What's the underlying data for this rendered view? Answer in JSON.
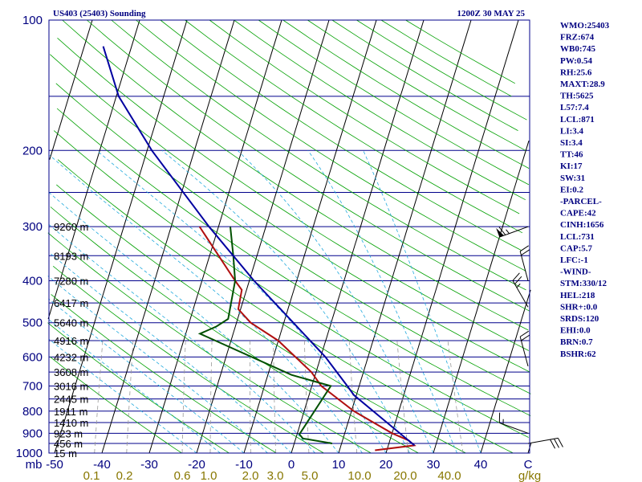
{
  "header": {
    "left_title": "US403 (25403) Sounding",
    "right_title": "1200Z 30 MAY 25"
  },
  "indices": [
    "WMO:25403",
    "FRZ:674",
    "WB0:745",
    "PW:0.54",
    "RH:25.6",
    "MAXT:28.9",
    "TH:5625",
    "L57:7.4",
    "LCL:871",
    "LI:3.4",
    "SI:3.4",
    "TT:46",
    "KI:17",
    "SW:31",
    "EI:0.2",
    "-PARCEL-",
    "CAPE:42",
    "CINH:1656",
    "LCL:731",
    "CAP:5.7",
    "LFC:-1",
    "-WIND-",
    "STM:330/12",
    "HEL:218",
    "SHR+:0.0",
    "SRDS:120",
    "EHI:0.0",
    "BRN:0.7",
    "BSHR:62"
  ],
  "colors": {
    "isobar": "#00008b",
    "isotherm": "#000000",
    "dry_adiabat": "#00a000",
    "moist_adiabat": "#22aadd",
    "mixing_ratio": "#999999",
    "temperature": "#b01010",
    "dewpoint": "#005000",
    "parcel": "#0000a0",
    "wind_barb": "#000000",
    "mixing_label": "#887700"
  },
  "chart_data": {
    "type": "skew-t log-p",
    "pressure_axis": {
      "unit": "mb",
      "range": [
        1000,
        100
      ],
      "scale": "log",
      "labels": [
        "100",
        "200",
        "300",
        "400",
        "500",
        "600",
        "700",
        "800",
        "900",
        "1000"
      ],
      "gridlines_hPa": [
        100,
        150,
        200,
        250,
        300,
        350,
        400,
        450,
        500,
        550,
        600,
        650,
        700,
        750,
        800,
        850,
        900,
        950,
        1000
      ]
    },
    "temperature_axis": {
      "unit": "C",
      "range": [
        -50,
        50
      ],
      "labels": [
        "mb",
        "-50",
        "-40",
        "-30",
        "-20",
        "-10",
        "0",
        "10",
        "20",
        "30",
        "40",
        "C"
      ]
    },
    "mixing_ratio_labels": [
      "0.1",
      "0.2",
      "0.6",
      "1.0",
      "2.0",
      "3.0",
      "5.0",
      "10.0",
      "20.0",
      "40.0",
      "g/kg"
    ],
    "height_labels": [
      {
        "p": 300,
        "label": "9260 m"
      },
      {
        "p": 350,
        "label": "8193 m"
      },
      {
        "p": 400,
        "label": "7280 m"
      },
      {
        "p": 450,
        "label": "6417 m"
      },
      {
        "p": 500,
        "label": "5640 m"
      },
      {
        "p": 550,
        "label": "4916 m"
      },
      {
        "p": 600,
        "label": "4232 m"
      },
      {
        "p": 650,
        "label": "3608 m"
      },
      {
        "p": 700,
        "label": "3016 m"
      },
      {
        "p": 750,
        "label": "2445 m"
      },
      {
        "p": 800,
        "label": "1911 m"
      },
      {
        "p": 850,
        "label": "1410 m"
      },
      {
        "p": 900,
        "label": "923 m"
      },
      {
        "p": 950,
        "label": "456 m"
      },
      {
        "p": 1000,
        "label": "15 m"
      }
    ],
    "temperature": [
      {
        "p": 985,
        "t": 17.5
      },
      {
        "p": 960,
        "t": 25.5
      },
      {
        "p": 935,
        "t": 24.0
      },
      {
        "p": 900,
        "t": 20.0
      },
      {
        "p": 800,
        "t": 10.5
      },
      {
        "p": 700,
        "t": 2.0
      },
      {
        "p": 650,
        "t": -1.0
      },
      {
        "p": 550,
        "t": -10.0
      },
      {
        "p": 500,
        "t": -17.0
      },
      {
        "p": 465,
        "t": -20.5
      },
      {
        "p": 420,
        "t": -21.0
      },
      {
        "p": 400,
        "t": -23.0
      },
      {
        "p": 300,
        "t": -34.0
      }
    ],
    "dewpoint": [
      {
        "p": 950,
        "t": 8.0
      },
      {
        "p": 925,
        "t": 1.5
      },
      {
        "p": 905,
        "t": 0.5
      },
      {
        "p": 700,
        "t": 4.0
      },
      {
        "p": 660,
        "t": -5.0
      },
      {
        "p": 530,
        "t": -27.0
      },
      {
        "p": 510,
        "t": -24.0
      },
      {
        "p": 490,
        "t": -22.0
      },
      {
        "p": 400,
        "t": -23.0
      },
      {
        "p": 350,
        "t": -25.0
      },
      {
        "p": 300,
        "t": -27.5
      }
    ],
    "parcel": [
      {
        "p": 960,
        "t": 25.5
      },
      {
        "p": 735,
        "t": 9.5
      },
      {
        "p": 700,
        "t": 7.5
      },
      {
        "p": 600,
        "t": 1.0
      },
      {
        "p": 500,
        "t": -8.0
      },
      {
        "p": 400,
        "t": -19.0
      },
      {
        "p": 300,
        "t": -32.0
      },
      {
        "p": 200,
        "t": -49.0
      },
      {
        "p": 150,
        "t": -59.5
      },
      {
        "p": 115,
        "t": -66.0
      }
    ],
    "wind_barbs": [
      {
        "p": 300,
        "dir": 250,
        "speed_kt": 65
      },
      {
        "p": 400,
        "dir": 345,
        "speed_kt": 20
      },
      {
        "p": 460,
        "dir": 330,
        "speed_kt": 25
      },
      {
        "p": 630,
        "dir": 345,
        "speed_kt": 20
      },
      {
        "p": 900,
        "dir": 290,
        "speed_kt": 15
      },
      {
        "p": 950,
        "dir": 80,
        "speed_kt": 30
      }
    ]
  }
}
